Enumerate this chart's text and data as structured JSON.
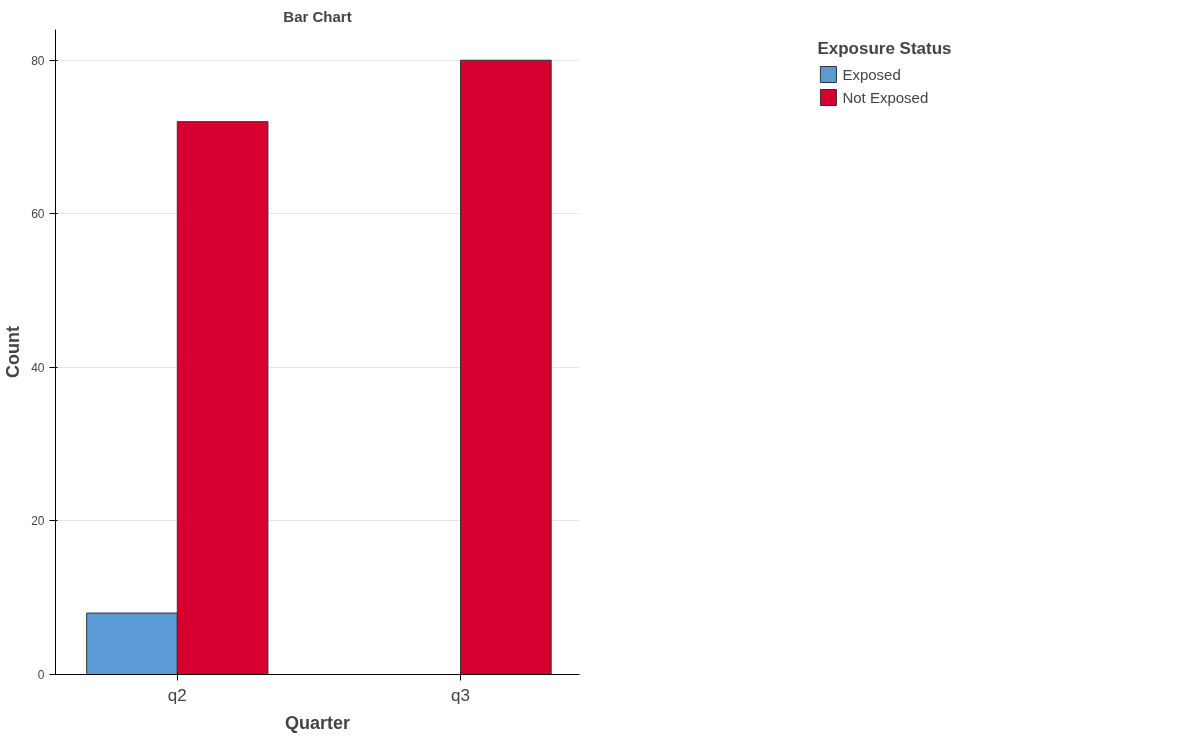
{
  "chart_data": {
    "type": "bar",
    "title": "Bar Chart",
    "xlabel": "Quarter",
    "ylabel": "Count",
    "legend_title": "Exposure Status",
    "categories": [
      "q2",
      "q3"
    ],
    "series": [
      {
        "name": "Exposed",
        "color": "#5b9bd5",
        "values": [
          8,
          null
        ]
      },
      {
        "name": "Not Exposed",
        "color": "#d5002f",
        "values": [
          72,
          80
        ]
      }
    ],
    "ylim": [
      0,
      84
    ],
    "yticks": [
      0,
      20,
      40,
      60,
      80
    ],
    "grid": "y",
    "legend": "top right"
  }
}
